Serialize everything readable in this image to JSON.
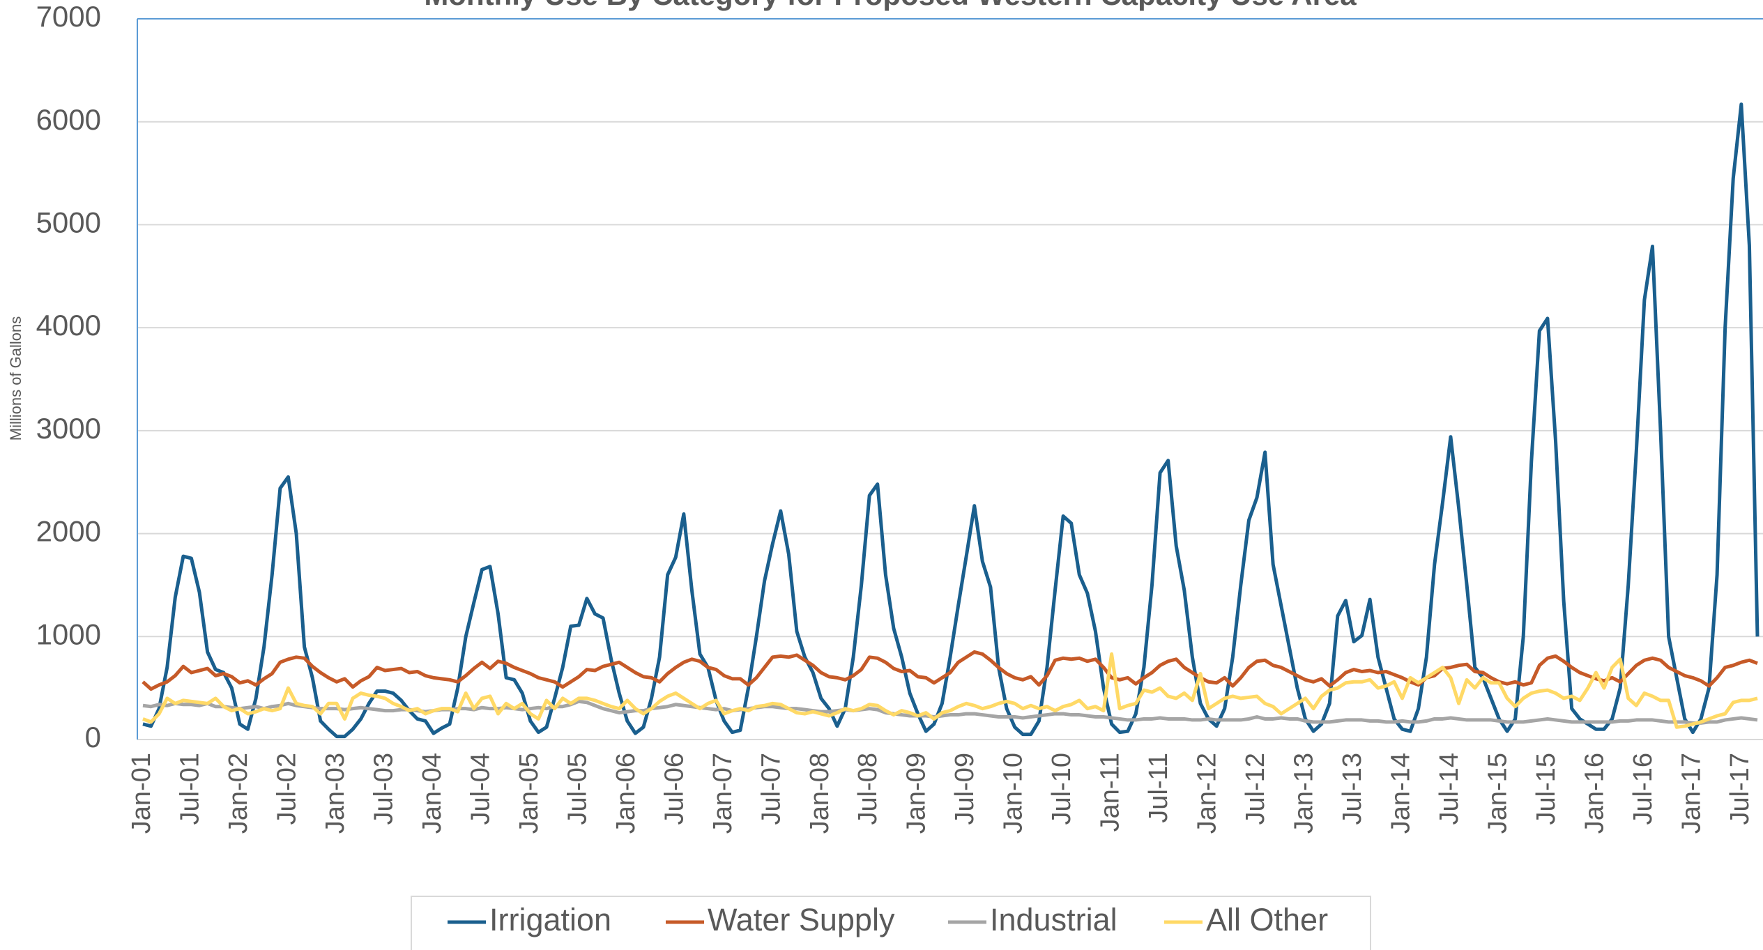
{
  "chart_data": {
    "type": "line",
    "title": "Monthly Use By Category for Proposed Western Capacity Use Area",
    "y_label": "Millions of Gallons",
    "categories": [
      "Jan-01",
      null,
      null,
      null,
      null,
      null,
      "Jul-01",
      null,
      null,
      null,
      null,
      null,
      "Jan-02",
      null,
      null,
      null,
      null,
      null,
      "Jul-02",
      null,
      null,
      null,
      null,
      null,
      "Jan-03",
      null,
      null,
      null,
      null,
      null,
      "Jul-03",
      null,
      null,
      null,
      null,
      null,
      "Jan-04",
      null,
      null,
      null,
      null,
      null,
      "Jul-04",
      null,
      null,
      null,
      null,
      null,
      "Jan-05",
      null,
      null,
      null,
      null,
      null,
      "Jul-05",
      null,
      null,
      null,
      null,
      null,
      "Jan-06",
      null,
      null,
      null,
      null,
      null,
      "Jul-06",
      null,
      null,
      null,
      null,
      null,
      "Jan-07",
      null,
      null,
      null,
      null,
      null,
      "Jul-07",
      null,
      null,
      null,
      null,
      null,
      "Jan-08",
      null,
      null,
      null,
      null,
      null,
      "Jul-08",
      null,
      null,
      null,
      null,
      null,
      "Jan-09",
      null,
      null,
      null,
      null,
      null,
      "Jul-09",
      null,
      null,
      null,
      null,
      null,
      "Jan-10",
      null,
      null,
      null,
      null,
      null,
      "Jul-10",
      null,
      null,
      null,
      null,
      null,
      "Jan-11",
      null,
      null,
      null,
      null,
      null,
      "Jul-11",
      null,
      null,
      null,
      null,
      null,
      "Jan-12",
      null,
      null,
      null,
      null,
      null,
      "Jul-12",
      null,
      null,
      null,
      null,
      null,
      "Jan-13",
      null,
      null,
      null,
      null,
      null,
      "Jul-13",
      null,
      null,
      null,
      null,
      null,
      "Jan-14",
      null,
      null,
      null,
      null,
      null,
      "Jul-14",
      null,
      null,
      null,
      null,
      null,
      "Jan-15",
      null,
      null,
      null,
      null,
      null,
      "Jul-15",
      null,
      null,
      null,
      null,
      null,
      "Jan-16",
      null,
      null,
      null,
      null,
      null,
      "Jul-16",
      null,
      null,
      null,
      null,
      null,
      "Jan-17",
      null,
      null,
      null,
      null,
      null,
      "Jul-17",
      null,
      null
    ],
    "series": [
      {
        "name": "Irrigation",
        "color": "#1a5f8e",
        "values": [
          150,
          130,
          300,
          700,
          1380,
          1780,
          1760,
          1430,
          850,
          680,
          650,
          500,
          150,
          100,
          400,
          900,
          1600,
          2440,
          2550,
          2000,
          900,
          600,
          180,
          100,
          30,
          30,
          100,
          200,
          350,
          470,
          470,
          450,
          380,
          280,
          200,
          180,
          60,
          110,
          150,
          500,
          1000,
          1330,
          1650,
          1680,
          1220,
          600,
          580,
          450,
          180,
          70,
          120,
          400,
          700,
          1100,
          1110,
          1370,
          1220,
          1180,
          780,
          450,
          180,
          60,
          120,
          400,
          800,
          1600,
          1770,
          2190,
          1450,
          830,
          700,
          380,
          180,
          70,
          90,
          500,
          1000,
          1540,
          1900,
          2220,
          1800,
          1050,
          800,
          650,
          400,
          300,
          130,
          300,
          800,
          1500,
          2370,
          2480,
          1600,
          1080,
          800,
          450,
          250,
          80,
          150,
          350,
          800,
          1300,
          1780,
          2270,
          1730,
          1480,
          700,
          300,
          120,
          50,
          50,
          180,
          700,
          1450,
          2170,
          2100,
          1600,
          1420,
          1050,
          500,
          150,
          70,
          80,
          250,
          700,
          1500,
          2590,
          2710,
          1880,
          1450,
          800,
          350,
          200,
          130,
          300,
          800,
          1500,
          2130,
          2350,
          2790,
          1700,
          1300,
          900,
          500,
          200,
          80,
          150,
          350,
          1200,
          1350,
          950,
          1010,
          1360,
          800,
          500,
          200,
          100,
          80,
          300,
          800,
          1700,
          2300,
          2940,
          2250,
          1500,
          700,
          600,
          400,
          200,
          80,
          200,
          1000,
          2700,
          3970,
          4090,
          2900,
          1350,
          300,
          200,
          150,
          100,
          100,
          200,
          500,
          1500,
          2800,
          4270,
          4790,
          3000,
          1000,
          600,
          200,
          70,
          200,
          500,
          1600,
          4000,
          5450,
          6170,
          4800,
          1000
        ]
      },
      {
        "name": "Water Supply",
        "color": "#c65a28",
        "values": [
          560,
          490,
          530,
          560,
          620,
          710,
          650,
          670,
          690,
          620,
          640,
          610,
          550,
          570,
          530,
          590,
          640,
          750,
          780,
          800,
          790,
          710,
          650,
          600,
          560,
          590,
          510,
          570,
          610,
          700,
          670,
          680,
          690,
          650,
          660,
          620,
          600,
          590,
          580,
          560,
          620,
          690,
          750,
          690,
          760,
          740,
          700,
          670,
          640,
          600,
          580,
          560,
          510,
          560,
          610,
          680,
          670,
          710,
          730,
          750,
          700,
          650,
          610,
          600,
          560,
          640,
          700,
          750,
          780,
          760,
          700,
          680,
          620,
          590,
          590,
          530,
          600,
          700,
          800,
          810,
          800,
          820,
          770,
          720,
          650,
          610,
          600,
          580,
          620,
          680,
          800,
          790,
          750,
          690,
          660,
          670,
          610,
          600,
          550,
          600,
          650,
          750,
          800,
          850,
          830,
          770,
          700,
          640,
          600,
          580,
          610,
          530,
          620,
          770,
          790,
          780,
          790,
          760,
          780,
          700,
          600,
          580,
          600,
          540,
          600,
          650,
          720,
          760,
          780,
          700,
          650,
          600,
          560,
          550,
          600,
          520,
          600,
          700,
          760,
          770,
          720,
          700,
          660,
          620,
          580,
          560,
          590,
          520,
          580,
          650,
          680,
          660,
          670,
          650,
          660,
          630,
          600,
          560,
          530,
          600,
          620,
          690,
          700,
          720,
          730,
          660,
          650,
          600,
          560,
          540,
          560,
          530,
          550,
          720,
          790,
          810,
          760,
          700,
          650,
          620,
          590,
          570,
          600,
          560,
          640,
          720,
          770,
          790,
          770,
          700,
          660,
          620,
          600,
          570,
          520,
          600,
          700,
          720,
          750,
          770,
          740
        ]
      },
      {
        "name": "Industrial",
        "color": "#a5a5a5",
        "values": [
          330,
          320,
          340,
          330,
          350,
          340,
          340,
          330,
          350,
          320,
          320,
          310,
          300,
          310,
          320,
          300,
          320,
          330,
          350,
          330,
          320,
          310,
          300,
          300,
          300,
          290,
          300,
          310,
          300,
          290,
          280,
          280,
          290,
          290,
          280,
          270,
          280,
          290,
          290,
          300,
          300,
          290,
          310,
          300,
          300,
          310,
          300,
          290,
          300,
          310,
          300,
          320,
          320,
          340,
          370,
          360,
          330,
          300,
          280,
          260,
          270,
          280,
          280,
          300,
          310,
          320,
          340,
          330,
          320,
          310,
          300,
          290,
          300,
          280,
          290,
          300,
          310,
          320,
          320,
          310,
          300,
          300,
          290,
          280,
          270,
          270,
          280,
          290,
          280,
          290,
          300,
          290,
          260,
          250,
          240,
          230,
          230,
          230,
          220,
          230,
          240,
          240,
          250,
          250,
          240,
          230,
          220,
          220,
          220,
          210,
          220,
          230,
          240,
          250,
          250,
          240,
          240,
          230,
          220,
          220,
          210,
          200,
          190,
          190,
          200,
          200,
          210,
          200,
          200,
          200,
          190,
          190,
          200,
          190,
          190,
          190,
          190,
          200,
          220,
          200,
          200,
          210,
          200,
          200,
          180,
          170,
          170,
          170,
          180,
          190,
          190,
          190,
          180,
          180,
          170,
          170,
          180,
          170,
          170,
          180,
          200,
          200,
          210,
          200,
          190,
          190,
          190,
          190,
          180,
          170,
          170,
          170,
          180,
          190,
          200,
          190,
          180,
          170,
          170,
          170,
          170,
          170,
          170,
          180,
          180,
          190,
          190,
          190,
          180,
          170,
          170,
          170,
          160,
          160,
          170,
          170,
          190,
          200,
          210,
          200,
          190
        ]
      },
      {
        "name": "All Other",
        "color": "#ffd966",
        "values": [
          200,
          170,
          250,
          400,
          350,
          380,
          370,
          360,
          350,
          400,
          320,
          280,
          300,
          250,
          270,
          300,
          280,
          300,
          500,
          350,
          330,
          320,
          250,
          350,
          350,
          200,
          400,
          450,
          430,
          420,
          400,
          350,
          320,
          280,
          300,
          250,
          280,
          300,
          300,
          270,
          450,
          300,
          400,
          420,
          250,
          350,
          300,
          350,
          250,
          200,
          380,
          300,
          400,
          350,
          400,
          400,
          380,
          350,
          320,
          300,
          380,
          300,
          250,
          300,
          370,
          420,
          450,
          400,
          350,
          300,
          350,
          380,
          250,
          280,
          300,
          280,
          320,
          330,
          350,
          340,
          300,
          260,
          250,
          270,
          250,
          230,
          260,
          300,
          280,
          300,
          340,
          330,
          280,
          240,
          280,
          260,
          230,
          260,
          200,
          260,
          280,
          320,
          350,
          330,
          300,
          320,
          350,
          370,
          350,
          300,
          330,
          300,
          320,
          280,
          320,
          340,
          380,
          300,
          320,
          280,
          830,
          300,
          330,
          350,
          480,
          460,
          500,
          420,
          400,
          450,
          380,
          640,
          300,
          350,
          400,
          420,
          400,
          410,
          420,
          350,
          320,
          250,
          300,
          350,
          400,
          300,
          420,
          480,
          500,
          550,
          560,
          560,
          580,
          500,
          520,
          560,
          400,
          600,
          550,
          600,
          650,
          700,
          600,
          350,
          580,
          500,
          600,
          550,
          550,
          400,
          320,
          400,
          450,
          470,
          480,
          450,
          400,
          420,
          380,
          500,
          650,
          500,
          700,
          780,
          400,
          330,
          450,
          420,
          380,
          380,
          120,
          130,
          150,
          170,
          200,
          230,
          250,
          360,
          380,
          380,
          400
        ]
      }
    ],
    "ylim": [
      0,
      7000
    ],
    "yticks": [
      0,
      1000,
      2000,
      3000,
      4000,
      5000,
      6000,
      7000
    ],
    "grid": true
  }
}
